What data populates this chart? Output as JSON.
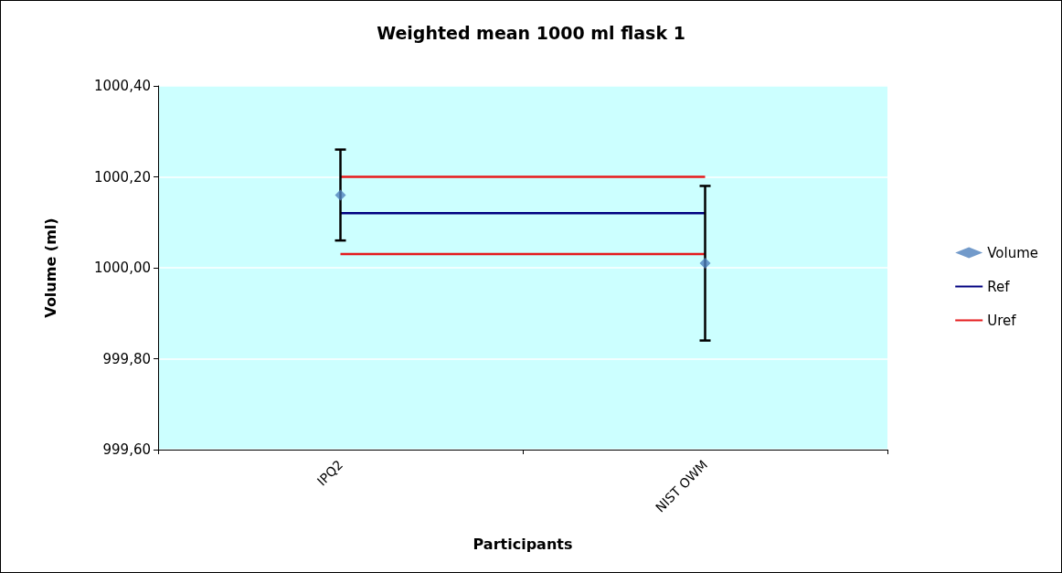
{
  "chart_data": {
    "type": "scatter",
    "title": "Weighted mean 1000 ml flask 1",
    "xlabel": "Participants",
    "ylabel": "Volume (ml)",
    "categories": [
      "IPQ2",
      "NIST OWM"
    ],
    "series": [
      {
        "name": "Volume",
        "color": "#4f81bd",
        "marker": "diamond",
        "values": [
          1000.16,
          1000.01
        ],
        "errors": [
          0.1,
          0.17
        ]
      },
      {
        "name": "Ref",
        "type": "line",
        "color": "#000080",
        "marker": "none",
        "values": [
          1000.12,
          1000.12
        ]
      },
      {
        "name": "Uref",
        "type": "line",
        "color": "#e41a1c",
        "marker": "none",
        "values": [
          1000.2,
          1000.2
        ]
      },
      {
        "type": "line",
        "color": "#e41a1c",
        "marker": "none",
        "values": [
          1000.03,
          1000.03
        ]
      }
    ],
    "ylim": [
      999.6,
      1000.4
    ],
    "yticks": [
      {
        "value": 999.6,
        "label": "999,60"
      },
      {
        "value": 999.8,
        "label": "999,80"
      },
      {
        "value": 1000.0,
        "label": "1000,00"
      },
      {
        "value": 1000.2,
        "label": "1000,20"
      },
      {
        "value": 1000.4,
        "label": "1000,40"
      }
    ],
    "grid": "y",
    "legend": "right"
  }
}
